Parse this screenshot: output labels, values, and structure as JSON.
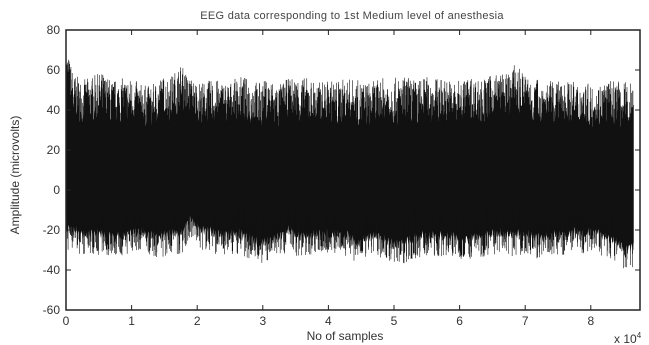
{
  "chart_data": {
    "type": "line",
    "title": "EEG data corresponding to 1st Medium level of anesthesia",
    "xlabel": "No of samples",
    "ylabel": "Amplitude (microvolts)",
    "x_exponent_label": "x 10",
    "x_exponent_power": "4",
    "xlim": [
      0,
      8.75
    ],
    "ylim": [
      -60,
      80
    ],
    "x_ticks": [
      0,
      1,
      2,
      3,
      4,
      5,
      6,
      7,
      8
    ],
    "y_ticks": [
      -60,
      -40,
      -20,
      0,
      20,
      40,
      60,
      80
    ],
    "grid": false,
    "legend": "none",
    "series_color": "#111111",
    "series": [
      {
        "x": [
          0,
          0.12,
          0.25,
          0.4,
          0.55,
          0.7,
          0.85,
          1.0,
          1.15,
          1.3,
          1.45,
          1.6,
          1.75,
          1.9,
          2.05,
          2.2,
          2.35,
          2.5,
          2.65,
          2.8,
          2.95,
          3.1,
          3.25,
          3.4,
          3.55,
          3.7,
          3.85,
          4.0,
          4.15,
          4.3,
          4.45,
          4.6,
          4.75,
          4.9,
          5.05,
          5.2,
          5.35,
          5.5,
          5.65,
          5.8,
          5.95,
          6.1,
          6.25,
          6.4,
          6.55,
          6.7,
          6.85,
          7.0,
          7.15,
          7.3,
          7.45,
          7.6,
          7.75,
          7.9,
          8.05,
          8.2,
          8.35,
          8.5,
          8.65
        ],
        "upper": [
          72,
          58,
          55,
          57,
          59,
          55,
          56,
          56,
          53,
          52,
          57,
          57,
          63,
          56,
          54,
          55,
          55,
          54,
          57,
          56,
          54,
          56,
          53,
          56,
          57,
          56,
          54,
          55,
          55,
          56,
          55,
          54,
          55,
          57,
          56,
          57,
          55,
          57,
          56,
          56,
          54,
          57,
          56,
          56,
          59,
          58,
          63,
          58,
          56,
          55,
          54,
          55,
          54,
          54,
          52,
          55,
          55,
          54,
          55
        ],
        "lower": [
          -32,
          -30,
          -33,
          -32,
          -33,
          -33,
          -33,
          -32,
          -30,
          -33,
          -34,
          -32,
          -33,
          -24,
          -30,
          -31,
          -33,
          -32,
          -32,
          -35,
          -37,
          -36,
          -34,
          -30,
          -34,
          -33,
          -32,
          -32,
          -33,
          -33,
          -38,
          -34,
          -33,
          -36,
          -38,
          -36,
          -34,
          -33,
          -34,
          -33,
          -34,
          -35,
          -34,
          -33,
          -32,
          -33,
          -34,
          -32,
          -35,
          -34,
          -32,
          -33,
          -31,
          -32,
          -30,
          -34,
          -36,
          -40,
          -40
        ]
      }
    ]
  }
}
